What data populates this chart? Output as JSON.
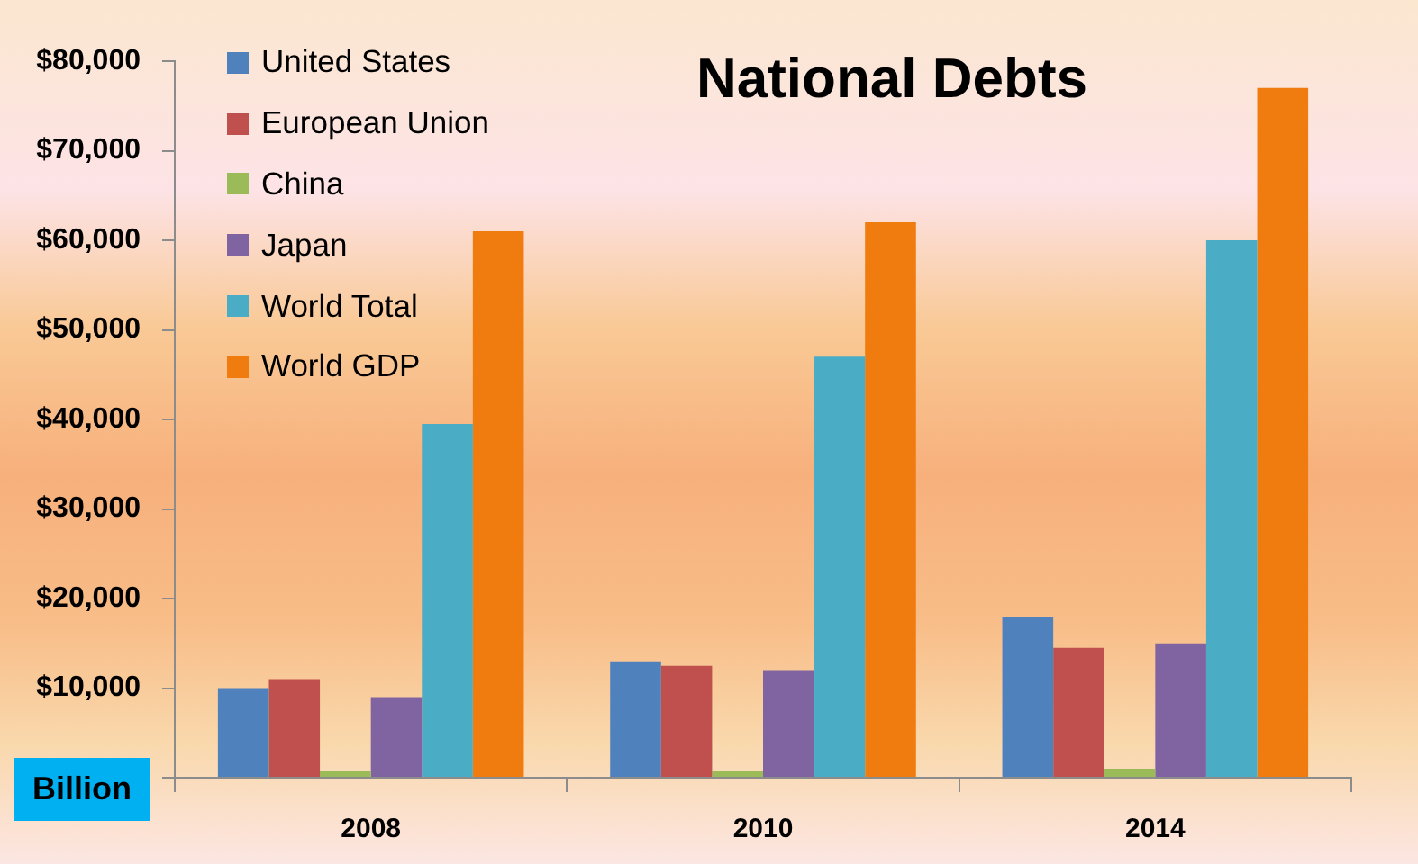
{
  "chart_data": {
    "type": "bar",
    "title": "National Debts",
    "ylabel": "Billion",
    "categories": [
      "2008",
      "2010",
      "2014"
    ],
    "series": [
      {
        "name": "United States",
        "color": "#4f81bd",
        "values": [
          10000,
          13000,
          18000
        ]
      },
      {
        "name": "European Union",
        "color": "#c0504d",
        "values": [
          11000,
          12500,
          14500
        ]
      },
      {
        "name": "China",
        "color": "#9bbb59",
        "values": [
          700,
          700,
          1000
        ]
      },
      {
        "name": "Japan",
        "color": "#8064a2",
        "values": [
          9000,
          12000,
          15000
        ]
      },
      {
        "name": "World Total",
        "color": "#4bacc6",
        "values": [
          39500,
          47000,
          60000
        ]
      },
      {
        "name": "World GDP",
        "color": "#f07c10",
        "values": [
          61000,
          62000,
          77000
        ]
      }
    ],
    "ylim": [
      0,
      80000
    ],
    "yticks": [
      {
        "value": 0,
        "label": null
      },
      {
        "value": 10000,
        "label": "$10,000"
      },
      {
        "value": 20000,
        "label": "$20,000"
      },
      {
        "value": 30000,
        "label": "$30,000"
      },
      {
        "value": 40000,
        "label": "$40,000"
      },
      {
        "value": 50000,
        "label": "$50,000"
      },
      {
        "value": 60000,
        "label": "$60,000"
      },
      {
        "value": 70000,
        "label": "$70,000"
      },
      {
        "value": 80000,
        "label": "$80,000"
      }
    ],
    "legend": "top left"
  }
}
